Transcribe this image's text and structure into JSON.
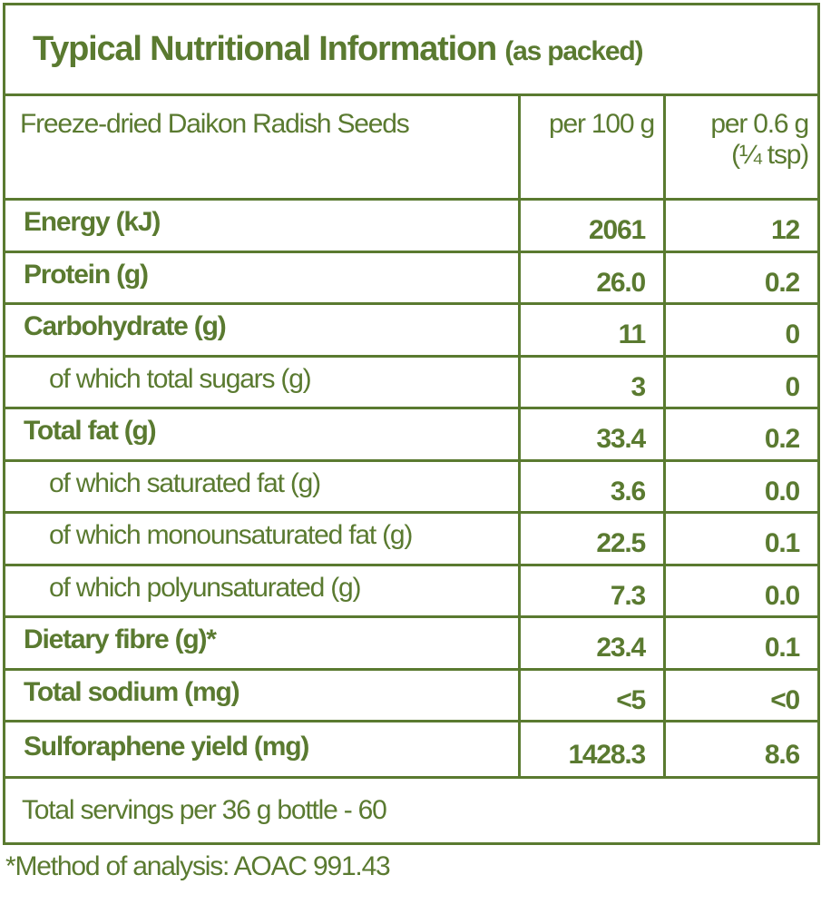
{
  "title": {
    "main": "Typical Nutritional Information",
    "suffix": "(as packed)"
  },
  "table": {
    "header": [
      "Freeze-dried Daikon Radish Seeds",
      "per 100 g",
      "per 0.6 g",
      "(¼ tsp)"
    ],
    "rows": [
      [
        "Energy (kJ)",
        "2061",
        "12"
      ],
      [
        "Protein (g)",
        "26.0",
        "0.2"
      ],
      [
        "Carbohydrate (g)",
        "11",
        "0"
      ],
      [
        "of which total sugars (g)",
        "3",
        "0"
      ],
      [
        "Total fat (g)",
        "33.4",
        "0.2"
      ],
      [
        "of which saturated fat (g)",
        "3.6",
        "0.0"
      ],
      [
        "of which monounsaturated fat (g)",
        "22.5",
        "0.1"
      ],
      [
        "of which polyunsaturated (g)",
        "7.3",
        "0.0"
      ],
      [
        "Dietary fibre (g)*",
        "23.4",
        "0.1"
      ],
      [
        "Total sodium (mg)",
        "<5",
        "<0"
      ],
      [
        "Sulforaphene yield (mg)",
        "1428.3",
        "8.6"
      ]
    ],
    "footer": "Total servings per 36 g bottle  - 60"
  },
  "footnote": "*Method of analysis: AOAC 991.43"
}
